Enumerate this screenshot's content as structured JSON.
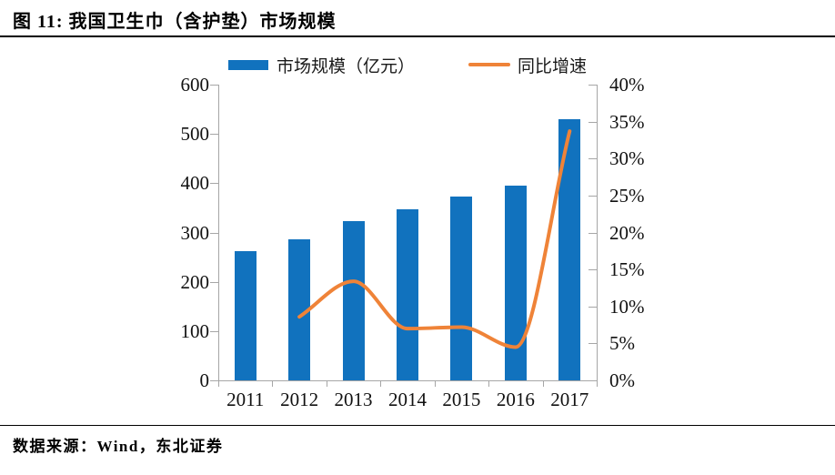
{
  "header": {
    "title": "图 11: 我国卫生巾（含护垫）市场规模"
  },
  "footer": {
    "source": "数据来源：Wind，东北证券"
  },
  "colors": {
    "bar": "#1172BE",
    "line": "#EF8338",
    "axis": "#A6A6A6",
    "rule": "#000000"
  },
  "chart_data": {
    "type": "bar",
    "title": "我国卫生巾（含护垫）市场规模",
    "categories": [
      "2011",
      "2012",
      "2013",
      "2014",
      "2015",
      "2016",
      "2017"
    ],
    "series": [
      {
        "name": "市场规模（亿元）",
        "type": "bar",
        "axis": "left",
        "color": "#1172BE",
        "values": [
          263,
          286,
          324,
          348,
          373,
          396,
          530
        ]
      },
      {
        "name": "同比增速",
        "type": "line",
        "axis": "right",
        "color": "#EF8338",
        "values": [
          null,
          8.6,
          13.4,
          7.0,
          7.2,
          4.5,
          33.7
        ]
      }
    ],
    "left_axis": {
      "min": 0,
      "max": 600,
      "step": 100,
      "tick_labels": [
        "600",
        "500",
        "400",
        "300",
        "200",
        "100",
        "0"
      ]
    },
    "right_axis": {
      "min": 0,
      "max": 40,
      "step": 5,
      "tick_labels": [
        "40%",
        "35%",
        "30%",
        "25%",
        "20%",
        "15%",
        "10%",
        "5%",
        "0%"
      ]
    },
    "grid": false,
    "legend_position": "top"
  }
}
